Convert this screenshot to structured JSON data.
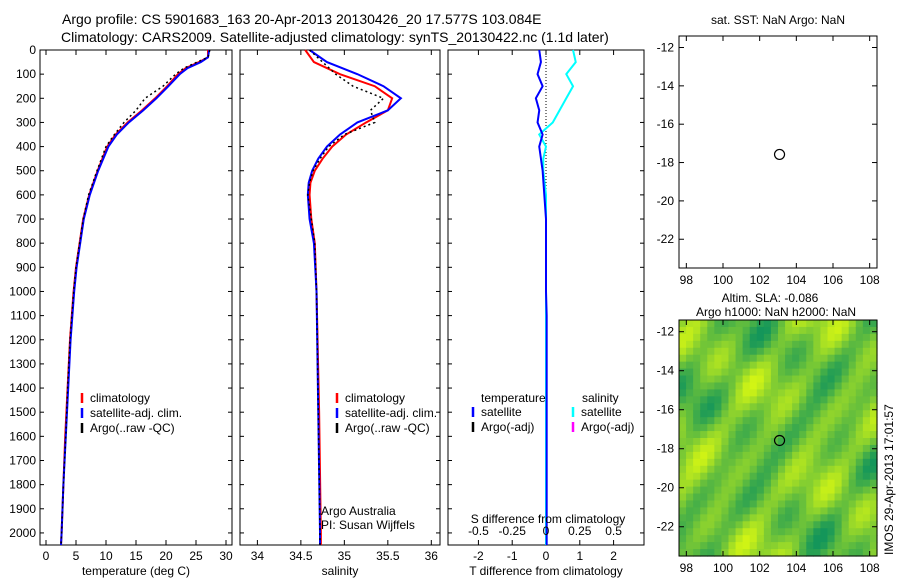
{
  "title_line1": "Argo profile: CS 5901683_163 20-Apr-2013 20130426_20 17.577S 103.084E",
  "title_line2": "Climatology: CARS2009. Satellite-adjusted climatology: synTS_20130422.nc (1.1d later)",
  "side_stamp": "IMOS 29-Apr-2013 17:01:57",
  "colors": {
    "clim": "#ff0000",
    "sat": "#0000ff",
    "argo": "#000000",
    "sat_s": "#00ffff",
    "argo_s": "#ff00ff"
  },
  "chart_data": [
    {
      "type": "line",
      "name": "temperature",
      "xlabel": "temperature (deg C)",
      "xlim": [
        -1,
        31
      ],
      "ylim": [
        2050,
        0
      ],
      "xticks": [
        0,
        5,
        10,
        15,
        20,
        25,
        30
      ],
      "yticks": [
        0,
        100,
        200,
        300,
        400,
        500,
        600,
        700,
        800,
        900,
        1000,
        1100,
        1200,
        1300,
        1400,
        1500,
        1600,
        1700,
        1800,
        1900,
        2000
      ],
      "legend": [
        "climatology",
        "satellite-adj. clim.",
        "Argo(..raw -QC)"
      ],
      "depth": [
        0,
        30,
        50,
        75,
        100,
        150,
        200,
        250,
        300,
        350,
        400,
        500,
        600,
        700,
        800,
        900,
        1000,
        1200,
        1400,
        1600,
        1800,
        2000,
        2050
      ],
      "series": [
        {
          "name": "climatology",
          "values": [
            27,
            27,
            25.5,
            23.3,
            22,
            20.2,
            18.2,
            16,
            13.6,
            11.6,
            10.2,
            8.6,
            7.2,
            6.2,
            5.6,
            5,
            4.6,
            4,
            3.6,
            3.2,
            2.9,
            2.6,
            2.5
          ]
        },
        {
          "name": "satellite-adj. clim.",
          "values": [
            27.2,
            27,
            25.8,
            23.6,
            22.3,
            20.4,
            18.4,
            16.2,
            13.8,
            11.8,
            10.4,
            8.7,
            7.3,
            6.3,
            5.7,
            5.1,
            4.7,
            4.1,
            3.7,
            3.3,
            2.9,
            2.6,
            2.5
          ]
        },
        {
          "name": "Argo(..raw -QC)",
          "values": [
            27.3,
            27,
            25.2,
            23,
            21.6,
            19.5,
            16.5,
            15,
            13,
            11.4,
            10,
            8.5,
            7.1,
            6.2,
            5.6,
            5,
            4.6,
            4,
            3.6,
            3.3,
            2.9,
            2.6,
            2.5
          ]
        }
      ]
    },
    {
      "type": "line",
      "name": "salinity",
      "xlabel": "salinity",
      "xlim": [
        33.8,
        36.1
      ],
      "ylim": [
        2050,
        0
      ],
      "xticks": [
        34,
        34.5,
        35,
        35.5,
        36
      ],
      "legend": [
        "climatology",
        "satellite-adj. clim.",
        "Argo(..raw -QC)"
      ],
      "annotation": [
        "Argo Australia",
        "PI: Susan Wijffels"
      ],
      "depth": [
        0,
        50,
        100,
        150,
        200,
        250,
        300,
        350,
        400,
        450,
        500,
        550,
        600,
        700,
        800,
        1000,
        1500,
        2000,
        2050
      ],
      "series": [
        {
          "name": "climatology",
          "values": [
            34.55,
            34.65,
            34.95,
            35.35,
            35.55,
            35.5,
            35.25,
            35.02,
            34.86,
            34.75,
            34.66,
            34.61,
            34.6,
            34.62,
            34.66,
            34.68,
            34.71,
            34.73,
            34.73
          ]
        },
        {
          "name": "satellite-adj. clim.",
          "values": [
            34.6,
            34.8,
            35.15,
            35.45,
            35.65,
            35.5,
            35.15,
            34.95,
            34.8,
            34.7,
            34.63,
            34.59,
            34.58,
            34.6,
            34.65,
            34.68,
            34.7,
            34.72,
            34.72
          ]
        },
        {
          "name": "Argo(..raw -QC)",
          "values": [
            34.6,
            34.75,
            34.9,
            35.1,
            35.45,
            35.3,
            35.35,
            35.0,
            34.82,
            34.72,
            34.64,
            34.6,
            34.58,
            34.62,
            34.66,
            34.68,
            34.7,
            34.72,
            34.72
          ]
        }
      ]
    },
    {
      "type": "line",
      "name": "difference",
      "xlabel": "T difference from climatology",
      "xlabel2": "S difference from climatology",
      "xlim": [
        -2.9,
        2.9
      ],
      "ylim": [
        2050,
        0
      ],
      "xticks": [
        -2,
        -1,
        0,
        1,
        2
      ],
      "xticks2": [
        "-0.5",
        "-0.25",
        "0",
        "0.25",
        "0.5"
      ],
      "legend_headers": [
        "temperature",
        "salinity"
      ],
      "legend": [
        "satellite",
        "Argo(-adj)",
        "satellite",
        "Argo(-adj)"
      ],
      "depth": [
        0,
        50,
        100,
        150,
        200,
        250,
        300,
        350,
        400,
        450,
        500,
        600,
        700,
        800,
        1000,
        1100,
        1500,
        2000,
        2050
      ],
      "series": [
        {
          "name": "T satellite",
          "values": [
            -0.2,
            -0.15,
            -0.25,
            -0.1,
            -0.3,
            -0.2,
            -0.25,
            -0.1,
            -0.2,
            -0.15,
            -0.1,
            -0.05,
            0,
            0,
            0,
            0.02,
            0.02,
            0.02,
            0.02
          ]
        },
        {
          "name": "S satellite",
          "values": [
            0.2,
            0.22,
            0.15,
            0.2,
            0.15,
            0.1,
            0.05,
            -0.05,
            0,
            -0.02,
            -0.02,
            0,
            0,
            0,
            0,
            0,
            0,
            0,
            0
          ]
        }
      ]
    },
    {
      "type": "scatter",
      "name": "sst-map",
      "title": "sat. SST: NaN Argo: NaN",
      "xlim": [
        97.6,
        108.4
      ],
      "ylim": [
        -23.5,
        -11.4
      ],
      "xticks": [
        98,
        100,
        102,
        104,
        106,
        108
      ],
      "yticks": [
        -12,
        -14,
        -16,
        -18,
        -20,
        -22
      ],
      "point": [
        103.084,
        -17.577
      ]
    },
    {
      "type": "heatmap",
      "name": "sla-map",
      "title": [
        "Altim. SLA: -0.086",
        "Argo h1000: NaN h2000: NaN"
      ],
      "xlim": [
        97.6,
        108.4
      ],
      "ylim": [
        -23.5,
        -11.4
      ],
      "xticks": [
        98,
        100,
        102,
        104,
        106,
        108
      ],
      "yticks": [
        -12,
        -14,
        -16,
        -18,
        -20,
        -22
      ],
      "point": [
        103.084,
        -17.577
      ]
    }
  ]
}
